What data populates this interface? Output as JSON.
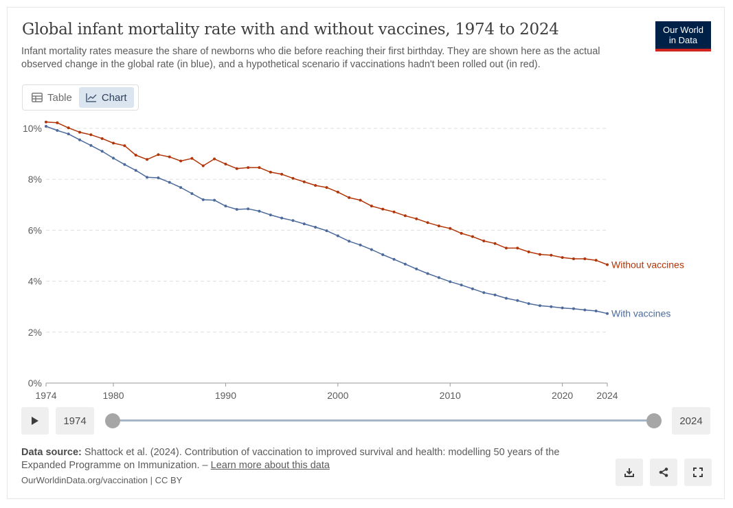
{
  "header": {
    "title": "Global infant mortality rate with and without vaccines, 1974 to 2024",
    "subtitle": "Infant mortality rates measure the share of newborns who die before reaching their first birthday. They are shown here as the actual observed change in the global rate (in blue), and a hypothetical scenario if vaccinations hadn't been rolled out (in red).",
    "logo_line1": "Our World",
    "logo_line2": "in Data"
  },
  "tabs": {
    "table_label": "Table",
    "chart_label": "Chart",
    "active": "Chart"
  },
  "timeline": {
    "start_year": "1974",
    "end_year": "2024"
  },
  "source": {
    "label": "Data source:",
    "text": "Shattock et al. (2024). Contribution of vaccination to improved survival and health: modelling 50 years of the Expanded Programme on Immunization. –",
    "link": "Learn more about this data",
    "license": "OurWorldinData.org/vaccination | CC BY"
  },
  "icons": {
    "table": "table-icon",
    "chart": "line-chart-icon",
    "play": "play-icon",
    "download": "download-icon",
    "share": "share-icon",
    "fullscreen": "fullscreen-icon"
  },
  "colors": {
    "without": "#b13507",
    "with": "#4c6a9c",
    "brand": "#002147",
    "brand_accent": "#ce261e"
  },
  "chart_data": {
    "type": "line",
    "title": "",
    "xlabel": "",
    "ylabel": "",
    "xlim": [
      1974,
      2024
    ],
    "ylim": [
      0,
      10
    ],
    "x_ticks": [
      1974,
      1980,
      1990,
      2000,
      2010,
      2020,
      2024
    ],
    "y_ticks": [
      0,
      2,
      4,
      6,
      8,
      10
    ],
    "y_tick_labels": [
      "0%",
      "2%",
      "4%",
      "6%",
      "8%",
      "10%"
    ],
    "grid": "horizontal dashed",
    "legend": "labels at line ends",
    "x": [
      1974,
      1975,
      1976,
      1977,
      1978,
      1979,
      1980,
      1981,
      1982,
      1983,
      1984,
      1985,
      1986,
      1987,
      1988,
      1989,
      1990,
      1991,
      1992,
      1993,
      1994,
      1995,
      1996,
      1997,
      1998,
      1999,
      2000,
      2001,
      2002,
      2003,
      2004,
      2005,
      2006,
      2007,
      2008,
      2009,
      2010,
      2011,
      2012,
      2013,
      2014,
      2015,
      2016,
      2017,
      2018,
      2019,
      2020,
      2021,
      2022,
      2023,
      2024
    ],
    "series": [
      {
        "name": "Without vaccines",
        "color": "#b13507",
        "values": [
          10.25,
          10.22,
          10.02,
          9.85,
          9.75,
          9.6,
          9.42,
          9.32,
          8.95,
          8.78,
          8.97,
          8.88,
          8.72,
          8.82,
          8.53,
          8.8,
          8.6,
          8.42,
          8.46,
          8.46,
          8.28,
          8.2,
          8.04,
          7.9,
          7.76,
          7.68,
          7.5,
          7.28,
          7.18,
          6.95,
          6.83,
          6.72,
          6.57,
          6.45,
          6.3,
          6.17,
          6.07,
          5.88,
          5.75,
          5.58,
          5.48,
          5.3,
          5.3,
          5.15,
          5.05,
          5.02,
          4.93,
          4.88,
          4.88,
          4.82,
          4.65
        ]
      },
      {
        "name": "With vaccines",
        "color": "#4c6a9c",
        "values": [
          10.08,
          9.92,
          9.78,
          9.55,
          9.33,
          9.1,
          8.83,
          8.58,
          8.35,
          8.08,
          8.06,
          7.88,
          7.68,
          7.44,
          7.2,
          7.18,
          6.95,
          6.82,
          6.84,
          6.75,
          6.6,
          6.48,
          6.38,
          6.25,
          6.12,
          5.98,
          5.78,
          5.57,
          5.42,
          5.24,
          5.04,
          4.86,
          4.67,
          4.48,
          4.3,
          4.14,
          3.98,
          3.85,
          3.7,
          3.55,
          3.46,
          3.33,
          3.24,
          3.12,
          3.04,
          3.0,
          2.95,
          2.92,
          2.87,
          2.83,
          2.73
        ]
      }
    ]
  }
}
